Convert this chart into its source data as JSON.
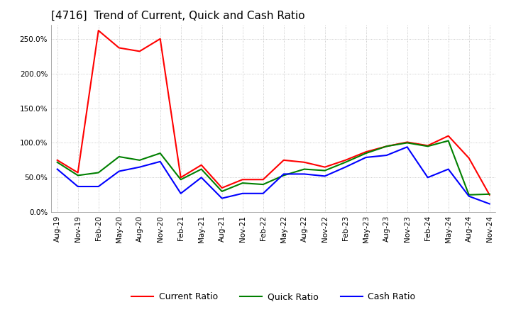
{
  "title": "[4716]  Trend of Current, Quick and Cash Ratio",
  "labels": [
    "Aug-19",
    "Nov-19",
    "Feb-20",
    "May-20",
    "Aug-20",
    "Nov-20",
    "Feb-21",
    "May-21",
    "Aug-21",
    "Nov-21",
    "Feb-22",
    "May-22",
    "Aug-22",
    "Nov-22",
    "Feb-23",
    "May-23",
    "Aug-23",
    "Nov-23",
    "Feb-24",
    "May-24",
    "Aug-24",
    "Nov-24"
  ],
  "current_ratio": [
    75,
    57,
    262,
    237,
    232,
    250,
    50,
    68,
    35,
    47,
    47,
    75,
    72,
    65,
    75,
    87,
    95,
    101,
    96,
    110,
    78,
    25
  ],
  "quick_ratio": [
    72,
    53,
    57,
    80,
    75,
    85,
    47,
    62,
    30,
    42,
    40,
    53,
    62,
    60,
    72,
    85,
    95,
    100,
    95,
    103,
    25,
    26
  ],
  "cash_ratio": [
    62,
    37,
    37,
    59,
    65,
    73,
    27,
    50,
    20,
    27,
    27,
    55,
    55,
    52,
    65,
    79,
    82,
    94,
    50,
    62,
    23,
    12
  ],
  "current_color": "#ff0000",
  "quick_color": "#008000",
  "cash_color": "#0000ff",
  "background_color": "#ffffff",
  "grid_color": "#bbbbbb",
  "ylim": [
    0,
    270
  ],
  "yticks": [
    0,
    50,
    100,
    150,
    200,
    250
  ],
  "title_fontsize": 11,
  "legend_fontsize": 9,
  "tick_fontsize": 7.5,
  "linewidth": 1.5
}
